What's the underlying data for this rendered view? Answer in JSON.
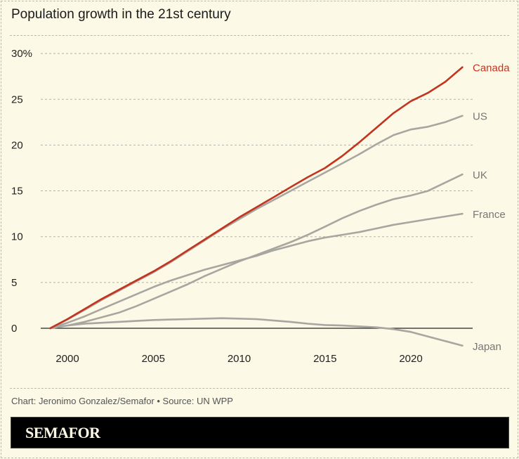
{
  "title": "Population growth in the 21st century",
  "credit": "Chart: Jeronimo Gonzalez/Semafor • Source: UN WPP",
  "brand": "SEMAFOR",
  "chart_data": {
    "type": "line",
    "title": "Population growth in the 21st century",
    "x": [
      1999,
      2000,
      2001,
      2002,
      2003,
      2004,
      2005,
      2006,
      2007,
      2008,
      2009,
      2010,
      2011,
      2012,
      2013,
      2014,
      2015,
      2016,
      2017,
      2018,
      2019,
      2020,
      2021,
      2022,
      2023
    ],
    "xticks": [
      2000,
      2005,
      2010,
      2015,
      2020
    ],
    "xtick_labels": [
      "2000",
      "2005",
      "2010",
      "2015",
      "2020"
    ],
    "yticks": [
      0,
      5,
      10,
      15,
      20,
      25,
      30
    ],
    "ytick_labels": [
      "0",
      "5",
      "10",
      "15",
      "20",
      "25",
      "30%"
    ],
    "ylim": [
      -2.5,
      30
    ],
    "xlim": [
      1999,
      2023
    ],
    "grid": "horizontal dashed",
    "legend": "direct labels at line ends (right)",
    "series": [
      {
        "name": "Canada",
        "color": "#c2341f",
        "values": [
          0,
          1.0,
          2.1,
          3.2,
          4.2,
          5.2,
          6.2,
          7.3,
          8.5,
          9.7,
          10.9,
          12.1,
          13.2,
          14.3,
          15.4,
          16.5,
          17.5,
          18.8,
          20.3,
          21.9,
          23.5,
          24.8,
          25.7,
          26.9,
          28.5
        ]
      },
      {
        "name": "US",
        "color": "#a8a6a0",
        "values": [
          0,
          0.95,
          2.0,
          3.1,
          4.1,
          5.1,
          6.1,
          7.2,
          8.4,
          9.6,
          10.8,
          11.9,
          13.0,
          14.0,
          15.0,
          16.0,
          17.0,
          18.0,
          19.0,
          20.1,
          21.1,
          21.7,
          22.0,
          22.5,
          23.2
        ]
      },
      {
        "name": "UK",
        "color": "#a8a6a0",
        "values": [
          0,
          0.3,
          0.7,
          1.2,
          1.7,
          2.4,
          3.2,
          4.0,
          4.8,
          5.7,
          6.5,
          7.3,
          8.0,
          8.7,
          9.4,
          10.2,
          11.1,
          12.0,
          12.8,
          13.5,
          14.1,
          14.5,
          15.0,
          15.9,
          16.8
        ]
      },
      {
        "name": "France",
        "color": "#a8a6a0",
        "values": [
          0,
          0.6,
          1.3,
          2.1,
          2.9,
          3.7,
          4.5,
          5.2,
          5.8,
          6.4,
          6.9,
          7.4,
          7.9,
          8.5,
          9.0,
          9.5,
          9.9,
          10.2,
          10.5,
          10.9,
          11.3,
          11.6,
          11.9,
          12.2,
          12.5
        ]
      },
      {
        "name": "Japan",
        "color": "#a8a6a0",
        "values": [
          0,
          0.3,
          0.5,
          0.6,
          0.7,
          0.8,
          0.9,
          0.95,
          1.0,
          1.05,
          1.1,
          1.05,
          1.0,
          0.85,
          0.7,
          0.5,
          0.35,
          0.3,
          0.2,
          0.1,
          -0.1,
          -0.4,
          -0.9,
          -1.4,
          -1.9
        ]
      }
    ]
  }
}
